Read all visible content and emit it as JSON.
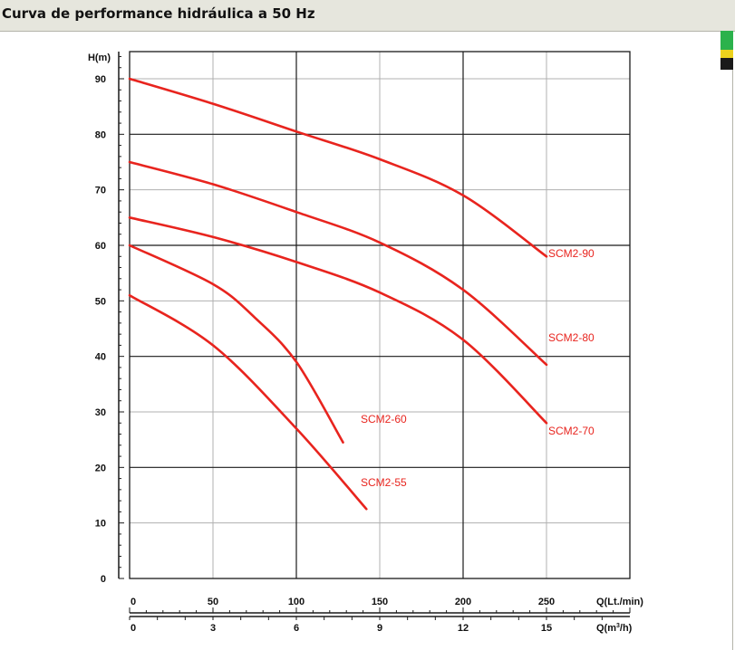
{
  "page_title": "Curva de performance hidráulica a 50 Hz",
  "swatches": [
    "#2bb24c",
    "#ecd21d",
    "#1a1a1a"
  ],
  "colors": {
    "curve": "#e8241e",
    "curve_label": "#e8241e",
    "grid": "#1a1a1a",
    "minor_grid": "#b0b0b0",
    "text": "#111111"
  },
  "chart_data": {
    "type": "line",
    "title": "",
    "ylabel": "H(m)",
    "xlabel": "Q(Lt./min)",
    "xlabel2": "Q(m³/h)",
    "xlim": [
      0,
      300
    ],
    "ylim": [
      0,
      90
    ],
    "y_ticks": [
      0,
      10,
      20,
      30,
      40,
      50,
      60,
      70,
      80,
      90
    ],
    "x_ticks": [
      "0",
      "50",
      "100",
      "150",
      "200",
      "250"
    ],
    "x2_ticks": [
      "0",
      "3",
      "6",
      "9",
      "12",
      "15"
    ],
    "grid": true,
    "series": [
      {
        "name": "SCM2-90",
        "x": [
          0,
          50,
          100,
          150,
          200,
          250
        ],
        "y": [
          90,
          85.5,
          80.5,
          75.5,
          69,
          58
        ]
      },
      {
        "name": "SCM2-80",
        "x": [
          0,
          50,
          100,
          150,
          200,
          250
        ],
        "y": [
          75,
          71,
          66,
          60.5,
          52,
          38.5
        ]
      },
      {
        "name": "SCM2-70",
        "x": [
          0,
          50,
          100,
          150,
          200,
          250
        ],
        "y": [
          65,
          61.5,
          57,
          51.5,
          43,
          28
        ]
      },
      {
        "name": "SCM2-60",
        "x": [
          0,
          50,
          75,
          100,
          128
        ],
        "y": [
          60,
          53,
          47,
          39,
          24.5
        ]
      },
      {
        "name": "SCM2-55",
        "x": [
          0,
          50,
          100,
          142
        ],
        "y": [
          51,
          42,
          27,
          12.5
        ]
      }
    ]
  }
}
